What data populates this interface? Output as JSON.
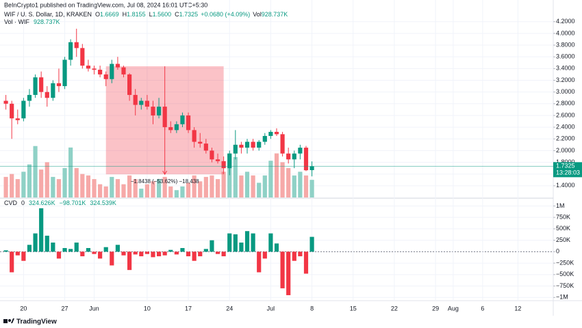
{
  "header": {
    "attribution": "BeInCrypto1 published on TradingView.com, Jul 08, 2024 16:01 UTC+5:30"
  },
  "footer": {
    "brand": "TradingView"
  },
  "chart_data": [
    {
      "type": "candlestick",
      "x": [
        "2024-05-17",
        "2024-05-18",
        "2024-05-19",
        "2024-05-20",
        "2024-05-21",
        "2024-05-22",
        "2024-05-23",
        "2024-05-24",
        "2024-05-25",
        "2024-05-26",
        "2024-05-27",
        "2024-05-28",
        "2024-05-29",
        "2024-05-30",
        "2024-05-31",
        "2024-06-01",
        "2024-06-02",
        "2024-06-03",
        "2024-06-04",
        "2024-06-05",
        "2024-06-06",
        "2024-06-07",
        "2024-06-08",
        "2024-06-09",
        "2024-06-10",
        "2024-06-11",
        "2024-06-12",
        "2024-06-13",
        "2024-06-14",
        "2024-06-15",
        "2024-06-16",
        "2024-06-17",
        "2024-06-18",
        "2024-06-19",
        "2024-06-20",
        "2024-06-21",
        "2024-06-22",
        "2024-06-23",
        "2024-06-24",
        "2024-06-25",
        "2024-06-26",
        "2024-06-27",
        "2024-06-28",
        "2024-06-29",
        "2024-06-30",
        "2024-07-01",
        "2024-07-02",
        "2024-07-03",
        "2024-07-04",
        "2024-07-05",
        "2024-07-06",
        "2024-07-07",
        "2024-07-08"
      ],
      "open": [
        2.85,
        2.8,
        2.55,
        2.55,
        2.85,
        2.95,
        3.25,
        3.0,
        2.9,
        3.15,
        3.1,
        3.55,
        3.85,
        3.75,
        3.45,
        3.4,
        3.38,
        3.3,
        3.22,
        3.48,
        3.42,
        3.3,
        2.95,
        2.78,
        2.85,
        2.75,
        2.6,
        2.75,
        2.4,
        2.35,
        2.45,
        2.6,
        2.35,
        2.15,
        2.12,
        2.0,
        1.85,
        1.82,
        1.7,
        1.95,
        2.1,
        2.05,
        2.15,
        2.05,
        2.15,
        2.25,
        2.32,
        2.28,
        1.95,
        1.85,
        1.95,
        2.05,
        1.6669
      ],
      "high": [
        2.95,
        2.85,
        2.7,
        2.9,
        3.05,
        3.3,
        3.35,
        3.1,
        3.2,
        3.4,
        3.6,
        3.9,
        4.08,
        3.82,
        3.55,
        3.45,
        3.45,
        3.35,
        3.55,
        3.6,
        3.45,
        3.32,
        3.05,
        2.9,
        2.95,
        2.85,
        2.9,
        2.8,
        2.5,
        2.5,
        2.65,
        2.65,
        2.4,
        2.3,
        2.2,
        2.05,
        1.95,
        1.9,
        2.0,
        2.35,
        2.15,
        2.2,
        2.2,
        2.18,
        2.3,
        2.35,
        2.38,
        2.32,
        2.05,
        2.0,
        2.1,
        2.08,
        1.8155
      ],
      "low": [
        2.7,
        2.2,
        2.45,
        2.5,
        2.75,
        2.9,
        2.9,
        2.75,
        2.85,
        3.0,
        3.05,
        3.45,
        3.6,
        3.4,
        3.35,
        3.3,
        3.25,
        3.1,
        3.15,
        3.38,
        3.25,
        2.85,
        2.6,
        2.7,
        2.7,
        2.45,
        2.55,
        2.35,
        2.3,
        2.3,
        2.4,
        2.3,
        2.05,
        2.05,
        1.95,
        1.8,
        1.78,
        1.6,
        1.58,
        1.85,
        1.95,
        1.95,
        2.0,
        2.0,
        2.1,
        2.2,
        2.25,
        1.9,
        1.78,
        1.7,
        1.85,
        1.65,
        1.56
      ],
      "close": [
        2.8,
        2.55,
        2.52,
        2.85,
        2.95,
        3.25,
        3.0,
        2.9,
        3.15,
        3.1,
        3.55,
        3.85,
        3.75,
        3.45,
        3.4,
        3.38,
        3.3,
        3.22,
        3.48,
        3.42,
        3.3,
        2.95,
        2.78,
        2.85,
        2.75,
        2.6,
        2.75,
        2.4,
        2.35,
        2.45,
        2.6,
        2.35,
        2.15,
        2.12,
        2.0,
        1.85,
        1.82,
        1.7,
        1.95,
        2.1,
        2.05,
        2.15,
        2.05,
        2.15,
        2.25,
        2.32,
        2.28,
        1.95,
        1.85,
        1.95,
        2.05,
        1.6645,
        1.7325
      ],
      "up_color": "#089981",
      "down_color": "#f23645",
      "xlim": [
        "2024-05-16",
        "2024-08-18"
      ],
      "xticks": [
        {
          "value": "2024-05-20",
          "label": "20"
        },
        {
          "value": "2024-05-27",
          "label": "27"
        },
        {
          "value": "2024-06-01",
          "label": "Jun"
        },
        {
          "value": "2024-06-10",
          "label": "10"
        },
        {
          "value": "2024-06-17",
          "label": "17"
        },
        {
          "value": "2024-06-24",
          "label": "24"
        },
        {
          "value": "2024-07-01",
          "label": "Jul"
        },
        {
          "value": "2024-07-08",
          "label": "8"
        },
        {
          "value": "2024-07-15",
          "label": "15"
        },
        {
          "value": "2024-07-22",
          "label": "22"
        },
        {
          "value": "2024-07-29",
          "label": "29"
        },
        {
          "value": "2024-08-01",
          "label": "Aug"
        },
        {
          "value": "2024-08-06",
          "label": "6"
        },
        {
          "value": "2024-08-12",
          "label": "12"
        }
      ],
      "ylim": [
        1.2,
        4.57
      ],
      "yticks": [
        {
          "value": 1.4,
          "label": "1.4000"
        },
        {
          "value": 1.6,
          "label": "1.6000"
        },
        {
          "value": 1.8,
          "label": "1.8000"
        },
        {
          "value": 2.0,
          "label": "2.0000"
        },
        {
          "value": 2.2,
          "label": "2.2000"
        },
        {
          "value": 2.4,
          "label": "2.4000"
        },
        {
          "value": 2.6,
          "label": "2.6000"
        },
        {
          "value": 2.8,
          "label": "2.8000"
        },
        {
          "value": 3.0,
          "label": "3.0000"
        },
        {
          "value": 3.2,
          "label": "3.2000"
        },
        {
          "value": 3.4,
          "label": "3.4000"
        },
        {
          "value": 3.6,
          "label": "3.6000"
        },
        {
          "value": 3.8,
          "label": "3.8000"
        },
        {
          "value": 4.0,
          "label": "4.0000"
        },
        {
          "value": 4.2,
          "label": "4.2000"
        }
      ],
      "volume": {
        "values": [
          1084000,
          1238000,
          968000,
          1355000,
          1742000,
          2709000,
          1471000,
          1858000,
          1084000,
          968000,
          1548000,
          2632000,
          1548000,
          1238000,
          1161000,
          968000,
          697000,
          581000,
          1084000,
          968000,
          697000,
          1161000,
          968000,
          464000,
          697000,
          851000,
          968000,
          1084000,
          581000,
          387000,
          581000,
          774000,
          1161000,
          851000,
          1084000,
          1161000,
          968000,
          1355000,
          2322000,
          2129000,
          1161000,
          1355000,
          1161000,
          774000,
          1161000,
          1935000,
          2322000,
          1858000,
          1548000,
          1161000,
          1355000,
          1161000,
          928737
        ],
        "up_color": "#8fd1c6",
        "down_color": "#f6a9a8",
        "ylim": [
          0,
          10400000
        ]
      },
      "current_price": {
        "color": "#089981",
        "countdown": "13:28:03"
      },
      "measurement": {
        "x": [
          "2024-06-03",
          "2024-06-23"
        ],
        "y": [
          3.4387,
          1.5949
        ],
        "label": "−1.8438 (−53.62%) −18,438",
        "color": "#f23645"
      },
      "legend": {
        "symbol": "WIF / U. S. Dollar, 1D, KRAKEN",
        "fields": [
          {
            "key": "O",
            "value": "1.6669"
          },
          {
            "key": "H",
            "value": "1.8155"
          },
          {
            "key": "L",
            "value": "1.5600"
          },
          {
            "key": "C",
            "value": "1.7325"
          }
        ],
        "change": "+0.0680 (+4.09%)",
        "volume_key": "Vol",
        "volume_name": "Vol · WIF",
        "volume_value": "928.737K"
      }
    },
    {
      "type": "bar",
      "values": [
        30000,
        -450000,
        -80000,
        -200000,
        150000,
        400000,
        950000,
        350000,
        200000,
        -150000,
        80000,
        60000,
        200000,
        -100000,
        80000,
        -50000,
        -150000,
        100000,
        -300000,
        150000,
        -80000,
        -400000,
        -60000,
        -100000,
        -50000,
        -120000,
        -100000,
        -80000,
        40000,
        -60000,
        80000,
        -100000,
        -200000,
        -100000,
        60000,
        250000,
        -50000,
        -100000,
        400000,
        380000,
        200000,
        450000,
        400000,
        -450000,
        -150000,
        400000,
        180000,
        -800000,
        -950000,
        -200000,
        -100000,
        -480000,
        324626
      ],
      "up_color": "#089981",
      "down_color": "#f23645",
      "ylim": [
        -1070000,
        1155000
      ],
      "yticks": [
        {
          "value": 1000000,
          "label": "1M"
        },
        {
          "value": 750000,
          "label": "750K"
        },
        {
          "value": 500000,
          "label": "500K"
        },
        {
          "value": 250000,
          "label": "250K"
        },
        0,
        {
          "value": -250000,
          "label": "−250K"
        },
        {
          "value": -500000,
          "label": "−500K"
        },
        {
          "value": -750000,
          "label": "−750K"
        },
        {
          "value": -1000000,
          "label": "−1M"
        }
      ],
      "legend": {
        "name": "CVD",
        "values": [
          "0",
          "324.626K",
          "−98.701K",
          "324.539K"
        ]
      }
    }
  ]
}
